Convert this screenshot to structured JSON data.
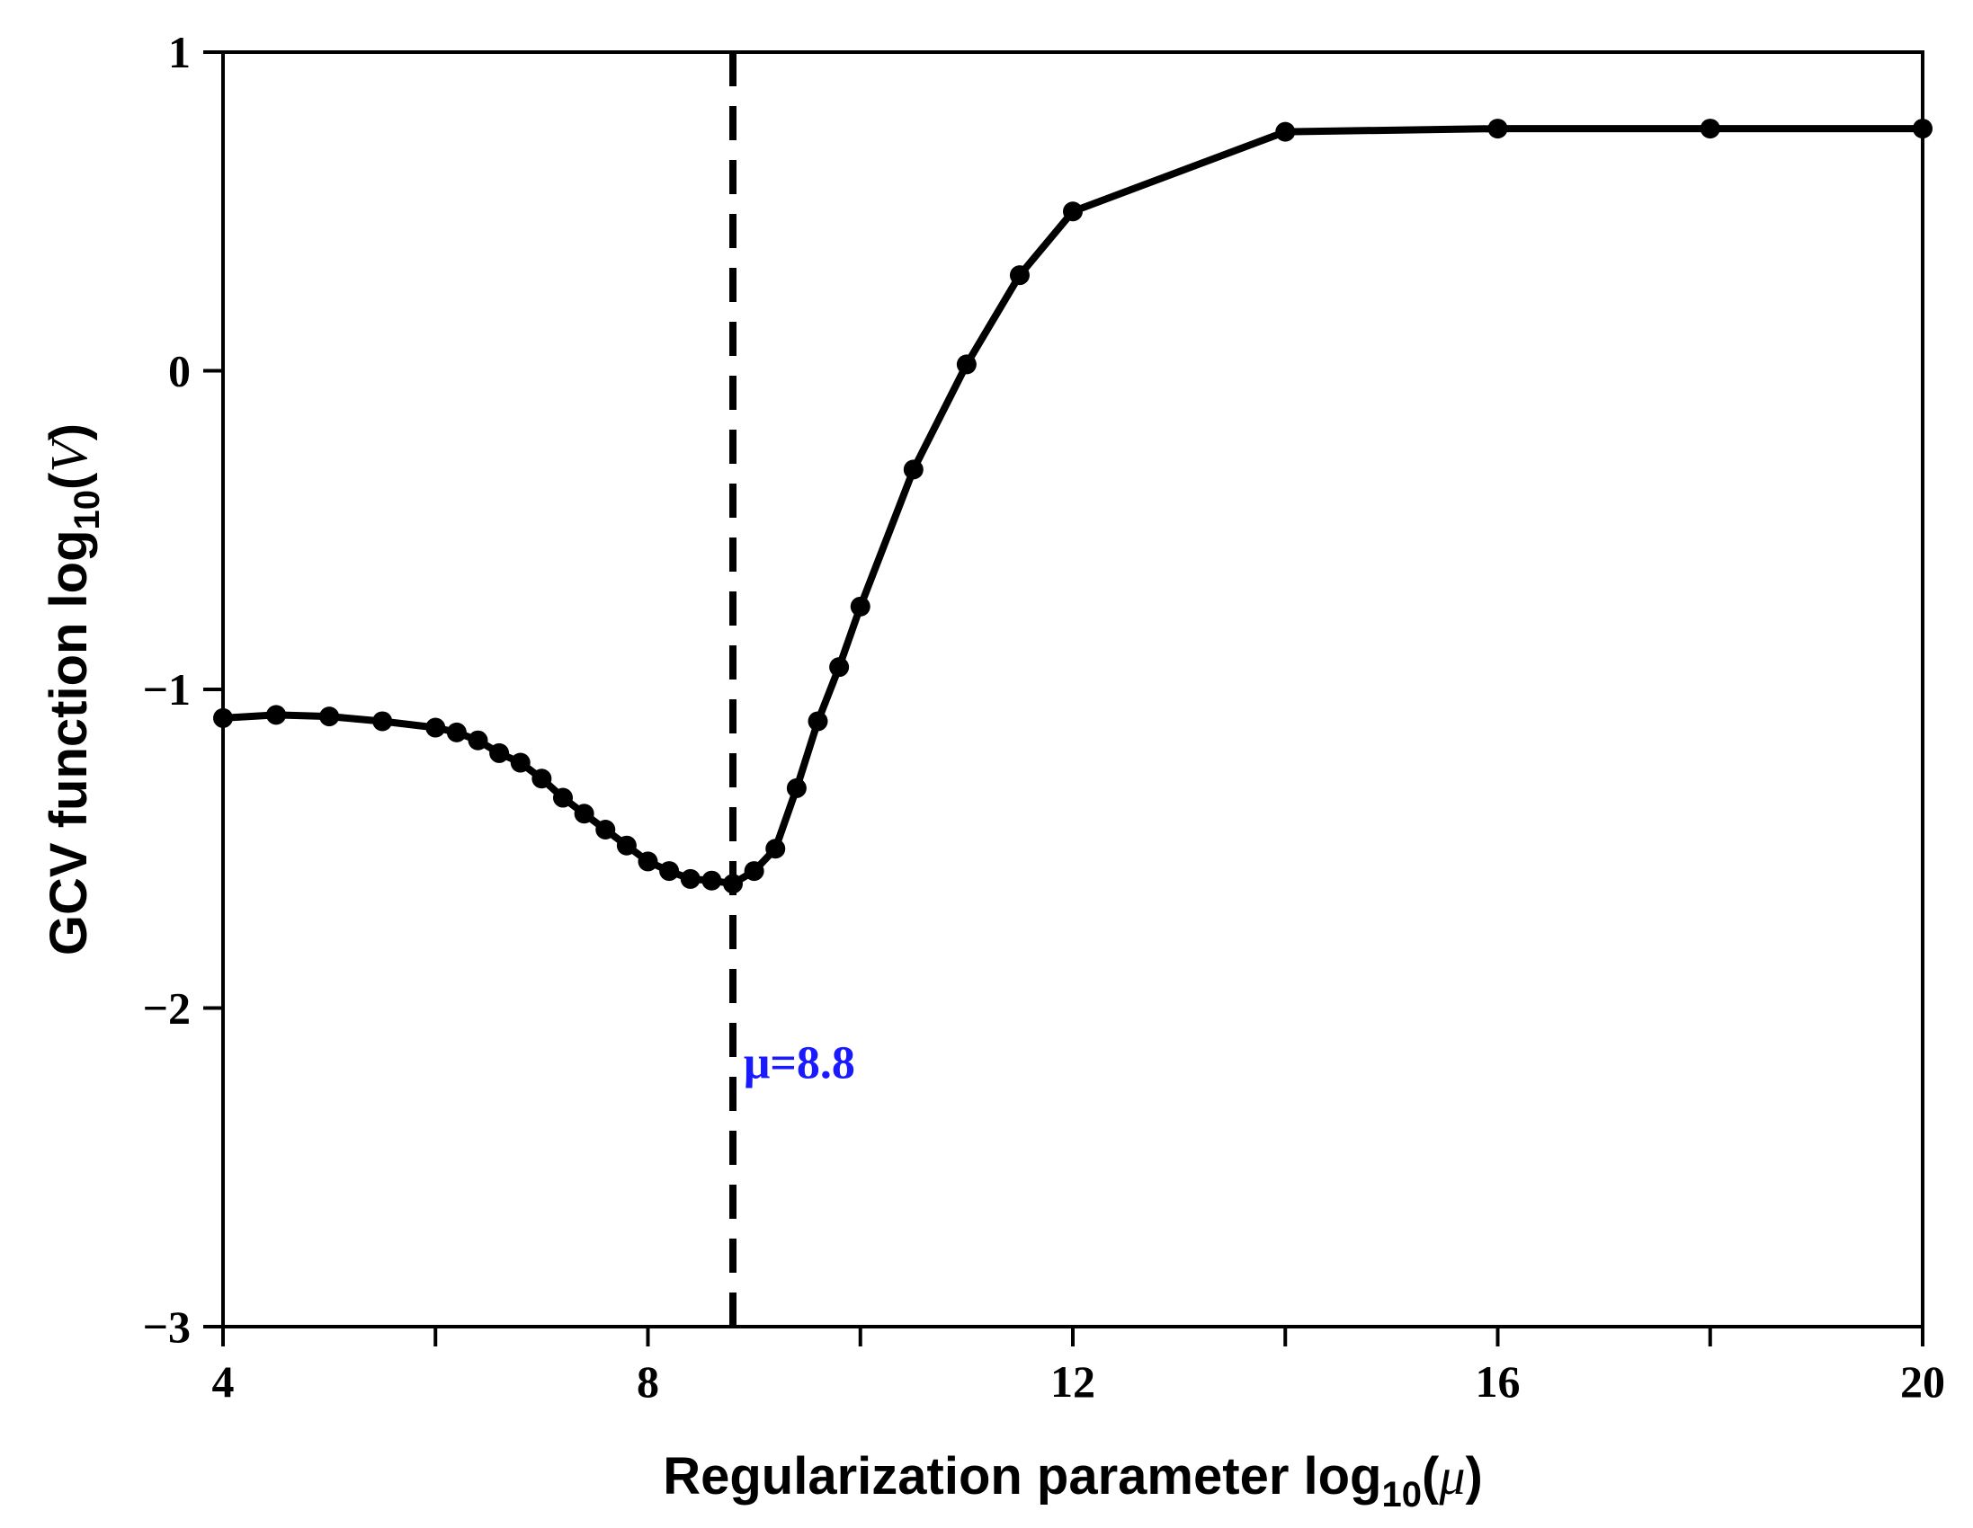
{
  "chart_data": {
    "type": "line",
    "xlabel": {
      "prefix": "Regularization parameter log",
      "sub": "10",
      "open": "(",
      "var": "μ",
      "close": ")"
    },
    "ylabel": {
      "prefix": "GCV function log",
      "sub": "10",
      "open": "(",
      "var": "V",
      "close": ")"
    },
    "xlim": [
      4,
      20
    ],
    "ylim": [
      -3,
      1
    ],
    "xticks": [
      4,
      6,
      8,
      10,
      12,
      14,
      16,
      18,
      20
    ],
    "xtick_labels": [
      {
        "value": 4,
        "label": "4"
      },
      {
        "value": 8,
        "label": "8"
      },
      {
        "value": 12,
        "label": "12"
      },
      {
        "value": 16,
        "label": "16"
      },
      {
        "value": 20,
        "label": "20"
      }
    ],
    "yticks": [
      -3,
      -2,
      -1,
      0,
      1
    ],
    "ytick_labels": [
      {
        "value": -3,
        "label": "−3"
      },
      {
        "value": -2,
        "label": "−2"
      },
      {
        "value": -1,
        "label": "−1"
      },
      {
        "value": 0,
        "label": "0"
      },
      {
        "value": 1,
        "label": "1"
      }
    ],
    "grid": false,
    "series": [
      {
        "color": "#000000",
        "marker": "circle",
        "x": [
          4.0,
          4.5,
          5.0,
          5.5,
          6.0,
          6.2,
          6.4,
          6.6,
          6.8,
          7.0,
          7.2,
          7.4,
          7.6,
          7.8,
          8.0,
          8.2,
          8.4,
          8.6,
          8.8,
          9.0,
          9.2,
          9.4,
          9.6,
          9.8,
          10.0,
          10.5,
          11.0,
          11.5,
          12.0,
          14.0,
          16.0,
          18.0,
          20.0
        ],
        "y": [
          -1.09,
          -1.08,
          -1.085,
          -1.1,
          -1.12,
          -1.135,
          -1.16,
          -1.2,
          -1.23,
          -1.28,
          -1.34,
          -1.39,
          -1.44,
          -1.49,
          -1.54,
          -1.57,
          -1.595,
          -1.6,
          -1.61,
          -1.57,
          -1.5,
          -1.31,
          -1.1,
          -0.93,
          -0.74,
          -0.31,
          0.02,
          0.3,
          0.5,
          0.75,
          0.76,
          0.76,
          0.76
        ]
      }
    ],
    "annotations": [
      {
        "type": "vline",
        "x": 8.8,
        "style": "dashed",
        "color": "#000000"
      },
      {
        "type": "text",
        "text": "μ=8.8",
        "x": 8.9,
        "y": -2.22,
        "color": "#1a1aff"
      }
    ]
  }
}
